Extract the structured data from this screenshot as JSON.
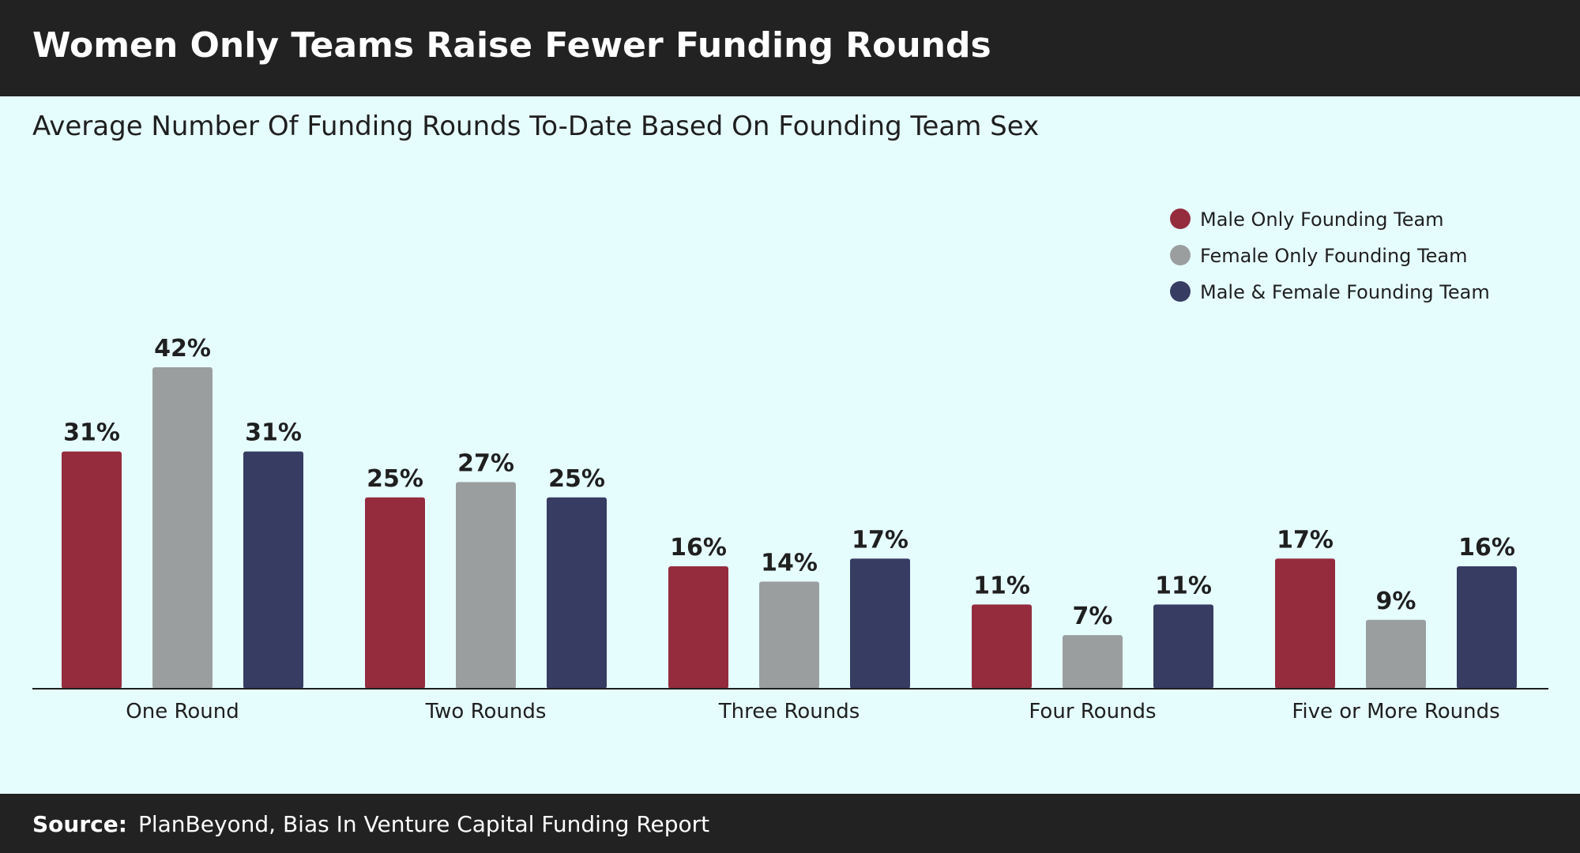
{
  "header": {
    "title": "Women Only Teams Raise Fewer Funding Rounds"
  },
  "footer": {
    "source_label": "Source:",
    "source_text": "PlanBeyond, Bias In Venture Capital Funding Report"
  },
  "chart_data": {
    "type": "bar",
    "title": "Women Only Teams Raise Fewer Funding Rounds",
    "subtitle": "Average Number Of Funding Rounds To-Date Based On Founding Team Sex",
    "categories": [
      "One Round",
      "Two Rounds",
      "Three Rounds",
      "Four Rounds",
      "Five or More Rounds"
    ],
    "series": [
      {
        "name": "Male Only Founding Team",
        "color": "#942c3e",
        "values": [
          31,
          25,
          16,
          11,
          17
        ]
      },
      {
        "name": "Female Only Founding Team",
        "color": "#9b9e9f",
        "values": [
          42,
          27,
          14,
          7,
          9
        ]
      },
      {
        "name": "Male & Female Founding Team",
        "color": "#363c62",
        "values": [
          31,
          25,
          17,
          11,
          16
        ]
      }
    ],
    "value_format": "%",
    "ylim": [
      0,
      42
    ],
    "grid": false,
    "legend": "top-right",
    "xlabel": "",
    "ylabel": ""
  }
}
